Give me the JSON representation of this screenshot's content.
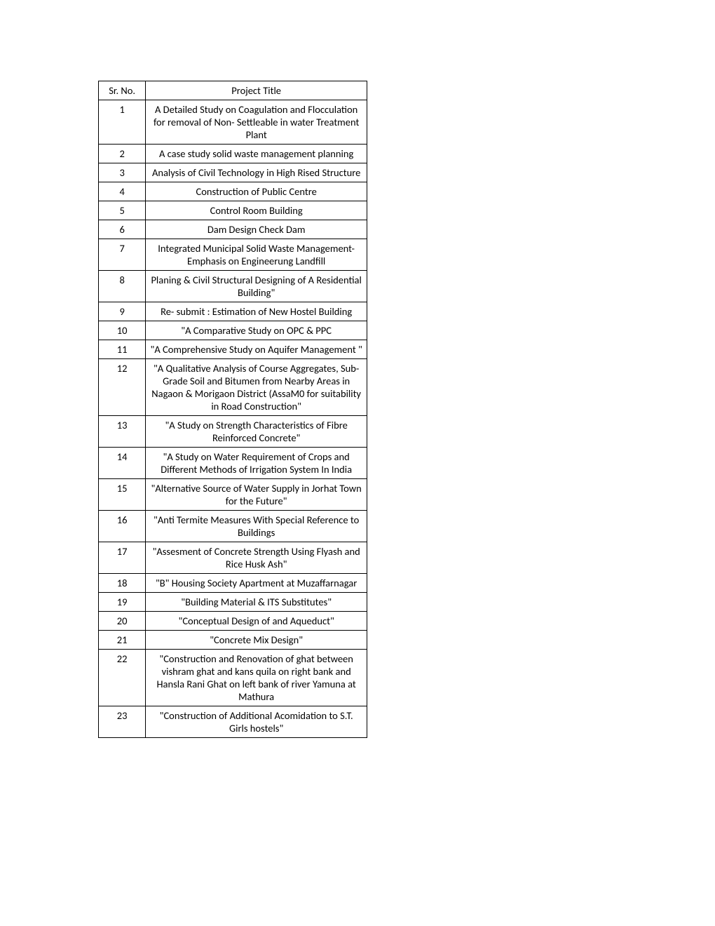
{
  "table": {
    "headers": {
      "sr_no": "Sr. No.",
      "project_title": "Project Title"
    },
    "rows": [
      {
        "sr": "1",
        "title": "A Detailed Study on Coagulation and Flocculation for removal of Non- Settleable in water Treatment  Plant"
      },
      {
        "sr": "2",
        "title": "A case study solid waste management planning"
      },
      {
        "sr": "3",
        "title": "Analysis of Civil Technology in High Rised Structure"
      },
      {
        "sr": "4",
        "title": "Construction of Public Centre"
      },
      {
        "sr": "5",
        "title": "Control Room Building"
      },
      {
        "sr": "6",
        "title": "Dam Design Check Dam"
      },
      {
        "sr": "7",
        "title": "Integrated Municipal Solid Waste Management-Emphasis on Engineerung Landfill"
      },
      {
        "sr": "8",
        "title": "Planing & Civil Structural Designing of A Residential Building\""
      },
      {
        "sr": "9",
        "title": "Re- submit : Estimation of New Hostel Building"
      },
      {
        "sr": "10",
        "title": "\"A Comparative Study on OPC & PPC"
      },
      {
        "sr": "11",
        "title": "\"A Comprehensive Study on Aquifer Management \""
      },
      {
        "sr": "12",
        "title": "\"A Qualitative Analysis of Course Aggregates, Sub-Grade Soil and Bitumen from Nearby Areas in Nagaon & Morigaon District (AssaM0 for suitability in Road Construction\""
      },
      {
        "sr": "13",
        "title": "\"A Study on Strength Characteristics of Fibre Reinforced Concrete\""
      },
      {
        "sr": "14",
        "title": "\"A Study on Water Requirement of Crops and Different Methods of Irrigation System In India"
      },
      {
        "sr": "15",
        "title": "\"Alternative Source of Water Supply in Jorhat Town for the Future\""
      },
      {
        "sr": "16",
        "title": "\"Anti Termite Measures With Special Reference to Buildings"
      },
      {
        "sr": "17",
        "title": "\"Assesment of Concrete Strength Using Flyash and Rice Husk Ash\""
      },
      {
        "sr": "18",
        "title": "\"B\" Housing Society Apartment at Muzaffarnagar"
      },
      {
        "sr": "19",
        "title": "\"Building Material & ITS Substitutes\""
      },
      {
        "sr": "20",
        "title": "\"Conceptual Design of and Aqueduct\""
      },
      {
        "sr": "21",
        "title": "\"Concrete Mix Design\""
      },
      {
        "sr": "22",
        "title": "\"Construction and Renovation of ghat between vishram ghat and kans quila on right bank and Hansla Rani Ghat on left bank of river Yamuna at Mathura"
      },
      {
        "sr": "23",
        "title": "\"Construction of Additional Acomidation to S.T. Girls hostels\""
      }
    ]
  }
}
